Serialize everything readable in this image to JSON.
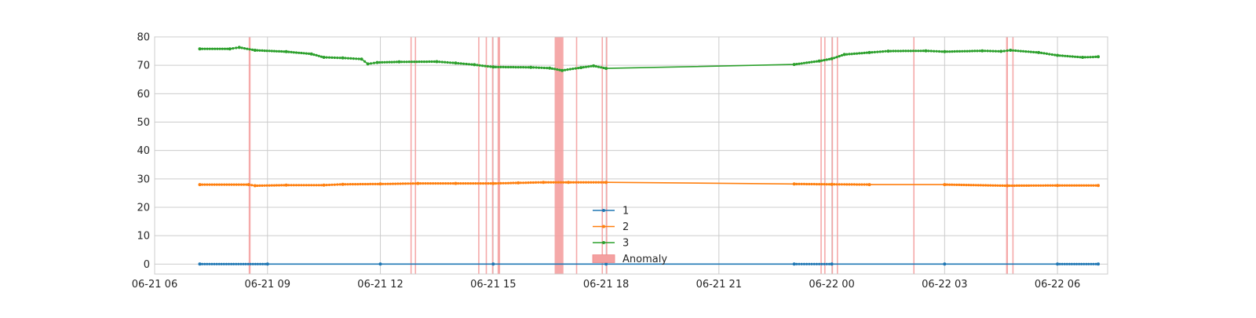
{
  "chart_data": {
    "type": "line",
    "title": "",
    "xlabel": "",
    "ylabel": "",
    "x_range": [
      "2024-06-21 06:00",
      "2024-06-22 07:20"
    ],
    "ylim": [
      -3.5,
      80
    ],
    "grid": true,
    "legend_position": "bottom-center",
    "x_ticks": [
      {
        "t": "2024-06-21 06:00",
        "label": "06-21 06"
      },
      {
        "t": "2024-06-21 09:00",
        "label": "06-21 09"
      },
      {
        "t": "2024-06-21 12:00",
        "label": "06-21 12"
      },
      {
        "t": "2024-06-21 15:00",
        "label": "06-21 15"
      },
      {
        "t": "2024-06-21 18:00",
        "label": "06-21 18"
      },
      {
        "t": "2024-06-21 21:00",
        "label": "06-21 21"
      },
      {
        "t": "2024-06-22 00:00",
        "label": "06-22 00"
      },
      {
        "t": "2024-06-22 03:00",
        "label": "06-22 03"
      },
      {
        "t": "2024-06-22 06:00",
        "label": "06-22 06"
      }
    ],
    "y_ticks": [
      0,
      10,
      20,
      30,
      40,
      50,
      60,
      70,
      80
    ],
    "series": [
      {
        "name": "1",
        "color": "#1f77b4",
        "points": [
          [
            "2024-06-21 07:12",
            0
          ],
          [
            "2024-06-21 09:00",
            0
          ],
          [
            "2024-06-21 12:00",
            0
          ],
          [
            "2024-06-21 15:00",
            0
          ],
          [
            "2024-06-21 18:00",
            0
          ],
          [
            "2024-06-21 23:00",
            0
          ],
          [
            "2024-06-22 00:00",
            0
          ],
          [
            "2024-06-22 03:00",
            0
          ],
          [
            "2024-06-22 06:00",
            0
          ],
          [
            "2024-06-22 07:05",
            0
          ]
        ]
      },
      {
        "name": "2",
        "color": "#ff7f0e",
        "points": [
          [
            "2024-06-21 07:12",
            28.0
          ],
          [
            "2024-06-21 08:30",
            28.0
          ],
          [
            "2024-06-21 08:40",
            27.6
          ],
          [
            "2024-06-21 09:30",
            27.8
          ],
          [
            "2024-06-21 10:30",
            27.8
          ],
          [
            "2024-06-21 11:00",
            28.1
          ],
          [
            "2024-06-21 12:00",
            28.2
          ],
          [
            "2024-06-21 13:00",
            28.4
          ],
          [
            "2024-06-21 14:00",
            28.4
          ],
          [
            "2024-06-21 15:00",
            28.4
          ],
          [
            "2024-06-21 15:40",
            28.6
          ],
          [
            "2024-06-21 16:20",
            28.8
          ],
          [
            "2024-06-21 17:00",
            28.8
          ],
          [
            "2024-06-21 18:00",
            28.8
          ],
          [
            "2024-06-21 23:00",
            28.2
          ],
          [
            "2024-06-22 00:00",
            28.1
          ],
          [
            "2024-06-22 01:00",
            28.0
          ],
          [
            "2024-06-22 03:00",
            28.0
          ],
          [
            "2024-06-22 04:40",
            27.6
          ],
          [
            "2024-06-22 06:00",
            27.7
          ],
          [
            "2024-06-22 07:05",
            27.7
          ]
        ]
      },
      {
        "name": "3",
        "color": "#2ca02c",
        "points": [
          [
            "2024-06-21 07:12",
            75.8
          ],
          [
            "2024-06-21 08:00",
            75.8
          ],
          [
            "2024-06-21 08:15",
            76.3
          ],
          [
            "2024-06-21 08:40",
            75.3
          ],
          [
            "2024-06-21 09:30",
            74.8
          ],
          [
            "2024-06-21 10:10",
            74.0
          ],
          [
            "2024-06-21 10:30",
            72.8
          ],
          [
            "2024-06-21 11:00",
            72.6
          ],
          [
            "2024-06-21 11:30",
            72.2
          ],
          [
            "2024-06-21 11:40",
            70.5
          ],
          [
            "2024-06-21 11:55",
            71.0
          ],
          [
            "2024-06-21 12:30",
            71.2
          ],
          [
            "2024-06-21 13:30",
            71.3
          ],
          [
            "2024-06-21 14:00",
            70.8
          ],
          [
            "2024-06-21 14:30",
            70.2
          ],
          [
            "2024-06-21 15:00",
            69.4
          ],
          [
            "2024-06-21 16:00",
            69.3
          ],
          [
            "2024-06-21 16:30",
            69.0
          ],
          [
            "2024-06-21 16:50",
            68.2
          ],
          [
            "2024-06-21 17:20",
            69.2
          ],
          [
            "2024-06-21 17:40",
            69.8
          ],
          [
            "2024-06-21 18:00",
            68.9
          ],
          [
            "2024-06-21 23:00",
            70.3
          ],
          [
            "2024-06-21 23:40",
            71.5
          ],
          [
            "2024-06-22 00:00",
            72.3
          ],
          [
            "2024-06-22 00:20",
            73.8
          ],
          [
            "2024-06-22 01:00",
            74.5
          ],
          [
            "2024-06-22 01:30",
            75.0
          ],
          [
            "2024-06-22 02:30",
            75.1
          ],
          [
            "2024-06-22 03:00",
            74.8
          ],
          [
            "2024-06-22 04:00",
            75.1
          ],
          [
            "2024-06-22 04:30",
            74.9
          ],
          [
            "2024-06-22 04:45",
            75.3
          ],
          [
            "2024-06-22 05:30",
            74.5
          ],
          [
            "2024-06-22 06:00",
            73.5
          ],
          [
            "2024-06-22 06:40",
            72.8
          ],
          [
            "2024-06-22 07:05",
            73.0
          ]
        ]
      }
    ],
    "anomaly": {
      "name": "Anomaly",
      "color": "#f4a0a0",
      "regions": [
        [
          "2024-06-21 08:30",
          "2024-06-21 08:33"
        ],
        [
          "2024-06-21 12:48",
          "2024-06-21 12:50"
        ],
        [
          "2024-06-21 12:55",
          "2024-06-21 12:57"
        ],
        [
          "2024-06-21 14:36",
          "2024-06-21 14:38"
        ],
        [
          "2024-06-21 14:48",
          "2024-06-21 14:50"
        ],
        [
          "2024-06-21 14:58",
          "2024-06-21 15:00"
        ],
        [
          "2024-06-21 15:07",
          "2024-06-21 15:11"
        ],
        [
          "2024-06-21 16:38",
          "2024-06-21 16:52"
        ],
        [
          "2024-06-21 17:12",
          "2024-06-21 17:14"
        ],
        [
          "2024-06-21 17:53",
          "2024-06-21 17:55"
        ],
        [
          "2024-06-21 18:00",
          "2024-06-21 18:02"
        ],
        [
          "2024-06-21 23:42",
          "2024-06-21 23:44"
        ],
        [
          "2024-06-21 23:48",
          "2024-06-21 23:50"
        ],
        [
          "2024-06-22 00:00",
          "2024-06-22 00:02"
        ],
        [
          "2024-06-22 00:08",
          "2024-06-22 00:10"
        ],
        [
          "2024-06-22 02:10",
          "2024-06-22 02:12"
        ],
        [
          "2024-06-22 04:38",
          "2024-06-22 04:41"
        ],
        [
          "2024-06-22 04:48",
          "2024-06-22 04:50"
        ]
      ]
    }
  }
}
